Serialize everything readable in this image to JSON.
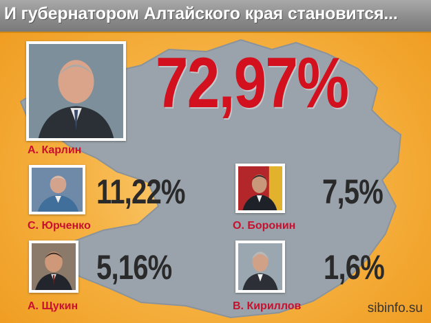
{
  "header": {
    "title": "И губернатором Алтайского края становится..."
  },
  "winner": {
    "name": "А. Карлин",
    "percent": "72,97%"
  },
  "candidates": [
    {
      "name": "С. Юрченко",
      "percent": "11,22%"
    },
    {
      "name": "О. Боронин",
      "percent": "7,5%"
    },
    {
      "name": "А. Щукин",
      "percent": "5,16%"
    },
    {
      "name": "В. Кириллов",
      "percent": "1,6%"
    }
  ],
  "footer": {
    "site": "sibinfo.su"
  },
  "colors": {
    "accent_red": "#d2101e",
    "name_red": "#c8102e",
    "map_gray": "#9aa3ab",
    "background_orange": "#f3a228"
  }
}
